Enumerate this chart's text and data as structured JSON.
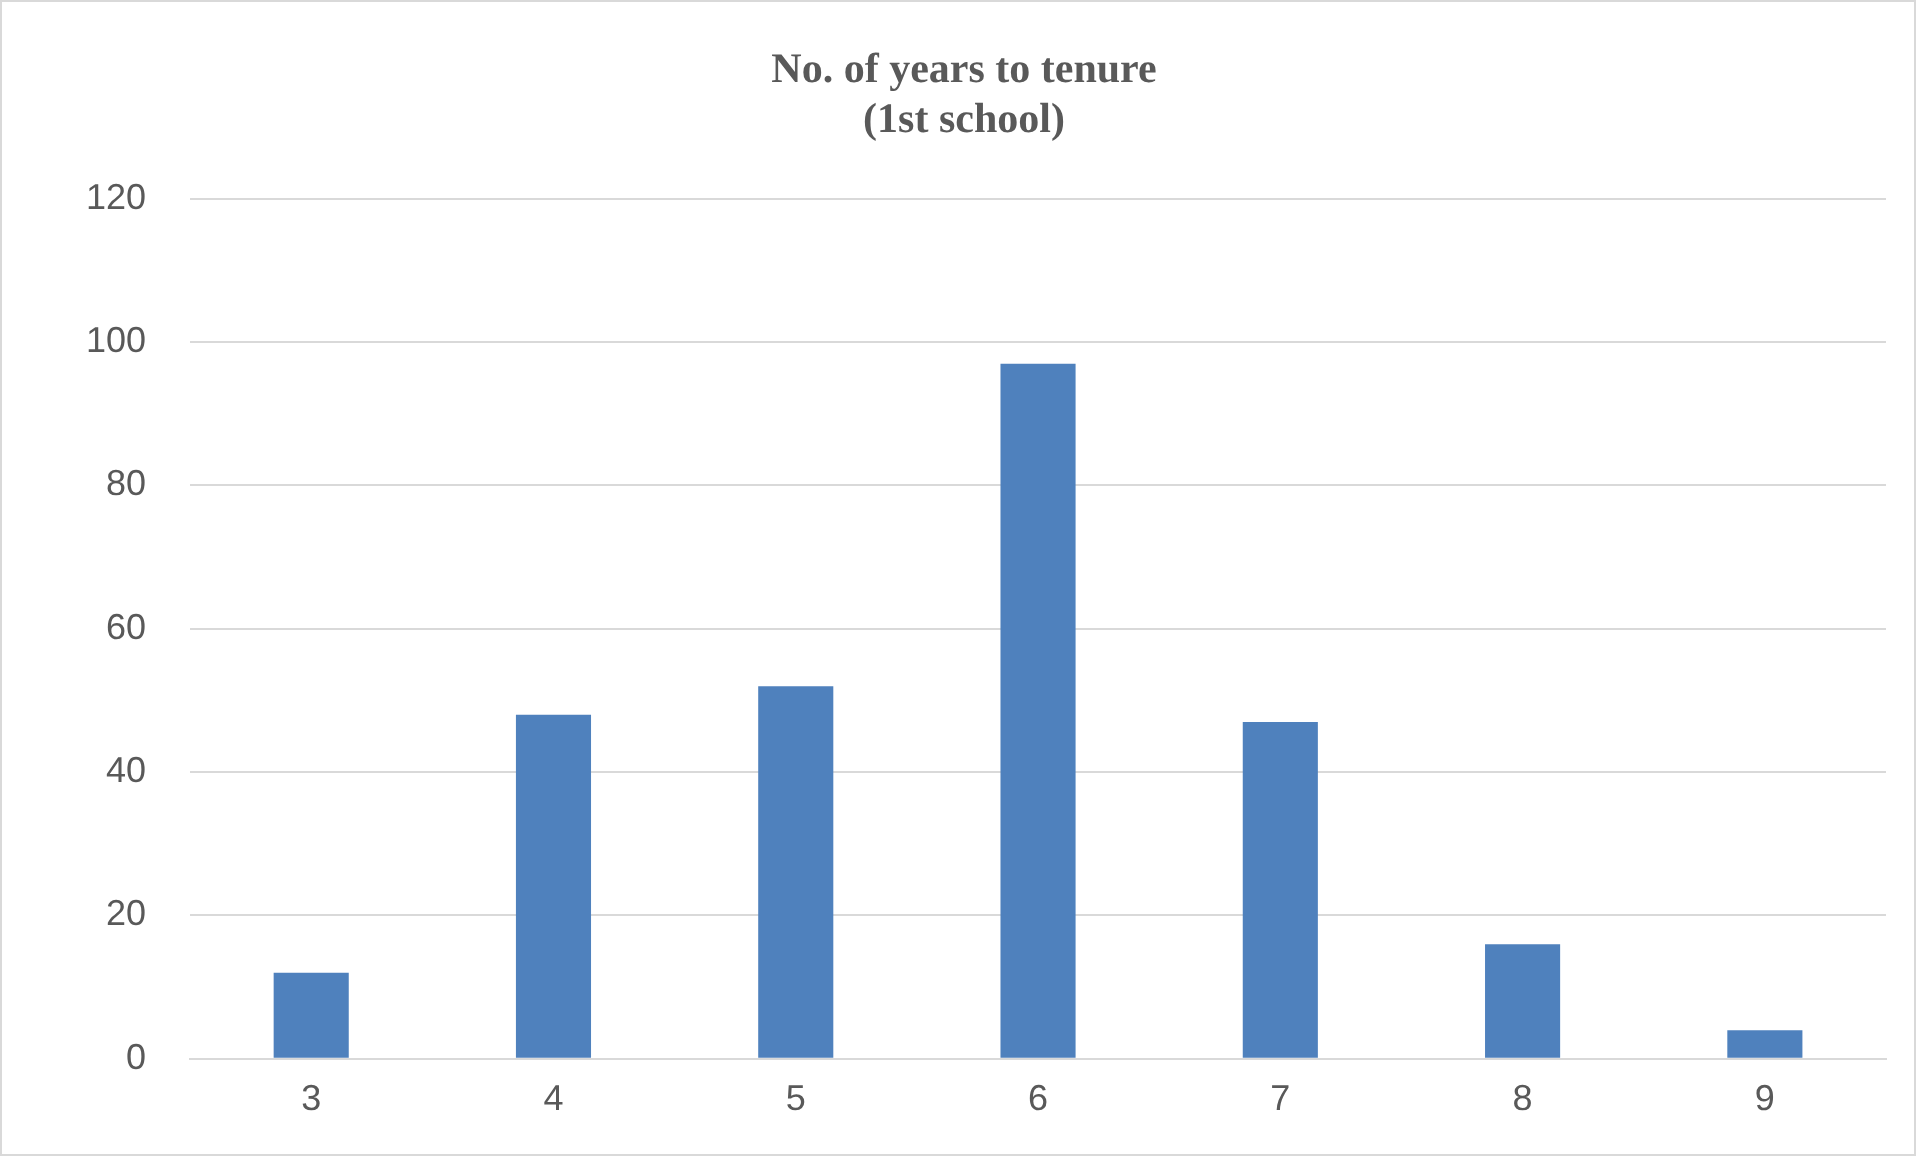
{
  "chart_data": {
    "type": "bar",
    "title": "No. of years to tenure",
    "subtitle": "(1st school)",
    "categories": [
      "3",
      "4",
      "5",
      "6",
      "7",
      "8",
      "9"
    ],
    "values": [
      12,
      48,
      52,
      97,
      47,
      16,
      4
    ],
    "color": "#4f81bd",
    "ylim": [
      0,
      120
    ],
    "yticks": [
      0,
      20,
      40,
      60,
      80,
      100,
      120
    ],
    "grid": "y",
    "legend": false
  }
}
